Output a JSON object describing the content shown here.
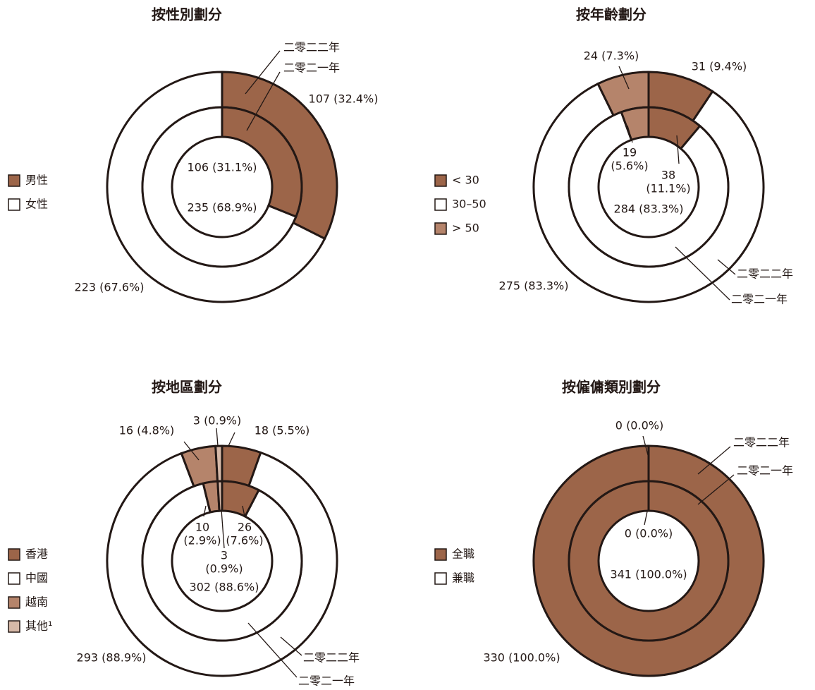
{
  "chart_data": [
    {
      "type": "donut",
      "title": "按性別劃分",
      "categories": [
        "男性",
        "女性"
      ],
      "colors": [
        "#9c6549",
        "#ffffff"
      ],
      "series": [
        {
          "name": "二零二二年",
          "values": [
            107,
            223
          ],
          "value_labels": [
            "107 (32.4%)",
            "223 (67.6%)"
          ]
        },
        {
          "name": "二零二一年",
          "values": [
            106,
            235
          ],
          "value_labels": [
            "106 (31.1%)",
            "235 (68.9%)"
          ]
        }
      ]
    },
    {
      "type": "donut",
      "title": "按年齡劃分",
      "categories": [
        "< 30",
        "30–50",
        "> 50"
      ],
      "colors": [
        "#9c6549",
        "#ffffff",
        "#b5846b"
      ],
      "series": [
        {
          "name": "二零二二年",
          "values": [
            31,
            275,
            24
          ],
          "value_labels": [
            "31 (9.4%)",
            "275 (83.3%)",
            "24 (7.3%)"
          ]
        },
        {
          "name": "二零二一年",
          "values": [
            38,
            284,
            19
          ],
          "value_labels": [
            "38 (11.1%)",
            "284 (83.3%)",
            "19 (5.6%)"
          ]
        }
      ]
    },
    {
      "type": "donut",
      "title": "按地區劃分",
      "categories": [
        "香港",
        "中國",
        "越南",
        "其他¹"
      ],
      "colors": [
        "#9c6549",
        "#ffffff",
        "#b5846b",
        "#d6b9a8"
      ],
      "series": [
        {
          "name": "二零二二年",
          "values": [
            18,
            293,
            16,
            3
          ],
          "value_labels": [
            "18 (5.5%)",
            "293 (88.9%)",
            "16 (4.8%)",
            "3 (0.9%)"
          ]
        },
        {
          "name": "二零二一年",
          "values": [
            26,
            302,
            10,
            3
          ],
          "value_labels": [
            "26 (7.6%)",
            "302 (88.6%)",
            "10 (2.9%)",
            "3 (0.9%)"
          ]
        }
      ]
    },
    {
      "type": "donut",
      "title": "按僱傭類別劃分",
      "categories": [
        "全職",
        "兼職"
      ],
      "colors": [
        "#9c6549",
        "#ffffff"
      ],
      "series": [
        {
          "name": "二零二二年",
          "values": [
            330,
            0
          ],
          "value_labels": [
            "330 (100.0%)",
            "0 (0.0%)"
          ]
        },
        {
          "name": "二零二一年",
          "values": [
            341,
            0
          ],
          "value_labels": [
            "341 (100.0%)",
            "0 (0.0%)"
          ]
        }
      ]
    }
  ]
}
